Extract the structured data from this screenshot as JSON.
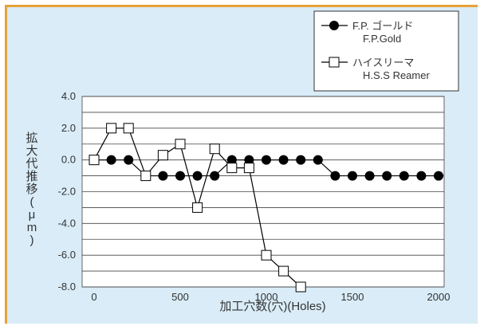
{
  "chart_data": {
    "type": "line",
    "xlabel": "加工穴数(穴)(Holes)",
    "ylabel": "拡大代推移(μm)",
    "xlim": [
      0,
      2000
    ],
    "ylim": [
      -8.0,
      4.0
    ],
    "x_ticks": [
      "0",
      "500",
      "1000",
      "1500",
      "2000"
    ],
    "y_ticks": [
      "4.0",
      "2.0",
      "0.0",
      "-2.0",
      "-4.0",
      "-6.0",
      "-8.0"
    ],
    "grid": true,
    "legend_position": "top-right",
    "series": [
      {
        "name": "F.P. ゴールド",
        "name_en": "F.P.Gold",
        "marker": "filled-circle",
        "color": "#000000",
        "x": [
          0,
          100,
          200,
          300,
          400,
          500,
          600,
          700,
          800,
          900,
          1000,
          1100,
          1200,
          1300,
          1400,
          1500,
          1600,
          1700,
          1800,
          1900,
          2000
        ],
        "y": [
          0,
          0,
          0,
          -1,
          -1,
          -1,
          -1,
          -1,
          0,
          0,
          0,
          0,
          0,
          0,
          -1,
          -1,
          -1,
          -1,
          -1,
          -1,
          -1
        ]
      },
      {
        "name": "ハイスリーマ",
        "name_en": "H.S.S Reamer",
        "marker": "hollow-square",
        "color": "#000000",
        "x": [
          0,
          100,
          200,
          300,
          400,
          500,
          600,
          700,
          800,
          900,
          1000,
          1100,
          1200
        ],
        "y": [
          0,
          2,
          2,
          -1,
          0.3,
          1,
          -3,
          0.7,
          -0.5,
          -0.5,
          -6,
          -7,
          -8
        ]
      }
    ]
  }
}
